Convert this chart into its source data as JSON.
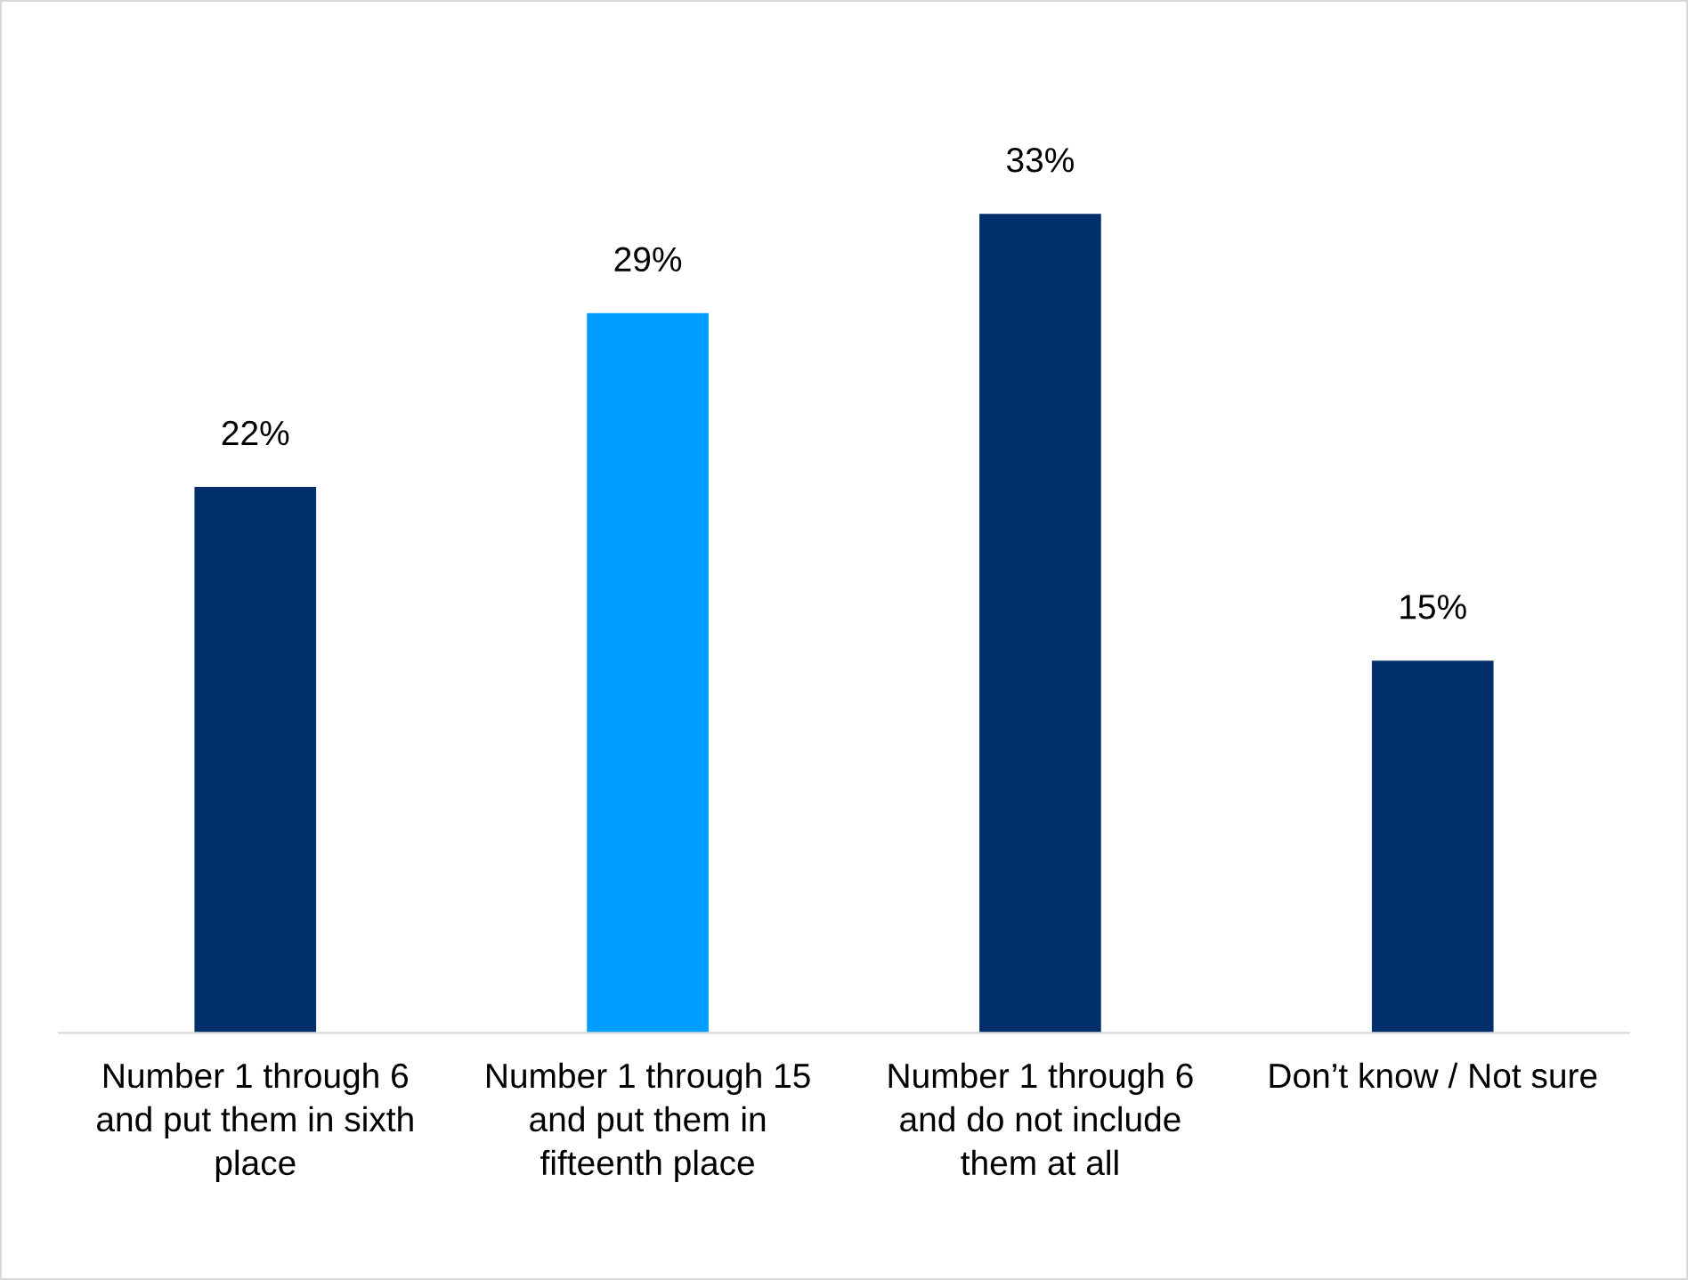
{
  "chart_data": {
    "type": "bar",
    "categories": [
      "Number 1 through 6\nand put them in sixth\nplace",
      "Number 1 through 15\nand put them in\nfifteenth place",
      "Number 1 through 6\nand do not include\nthem at all",
      "Don’t know / Not sure"
    ],
    "values": [
      22,
      29,
      33,
      15
    ],
    "colors": [
      "#002f6c",
      "#009fff",
      "#002f6c",
      "#002f6c"
    ],
    "value_labels": [
      "22%",
      "29%",
      "33%",
      "15%"
    ],
    "grid": false,
    "legend": false
  }
}
